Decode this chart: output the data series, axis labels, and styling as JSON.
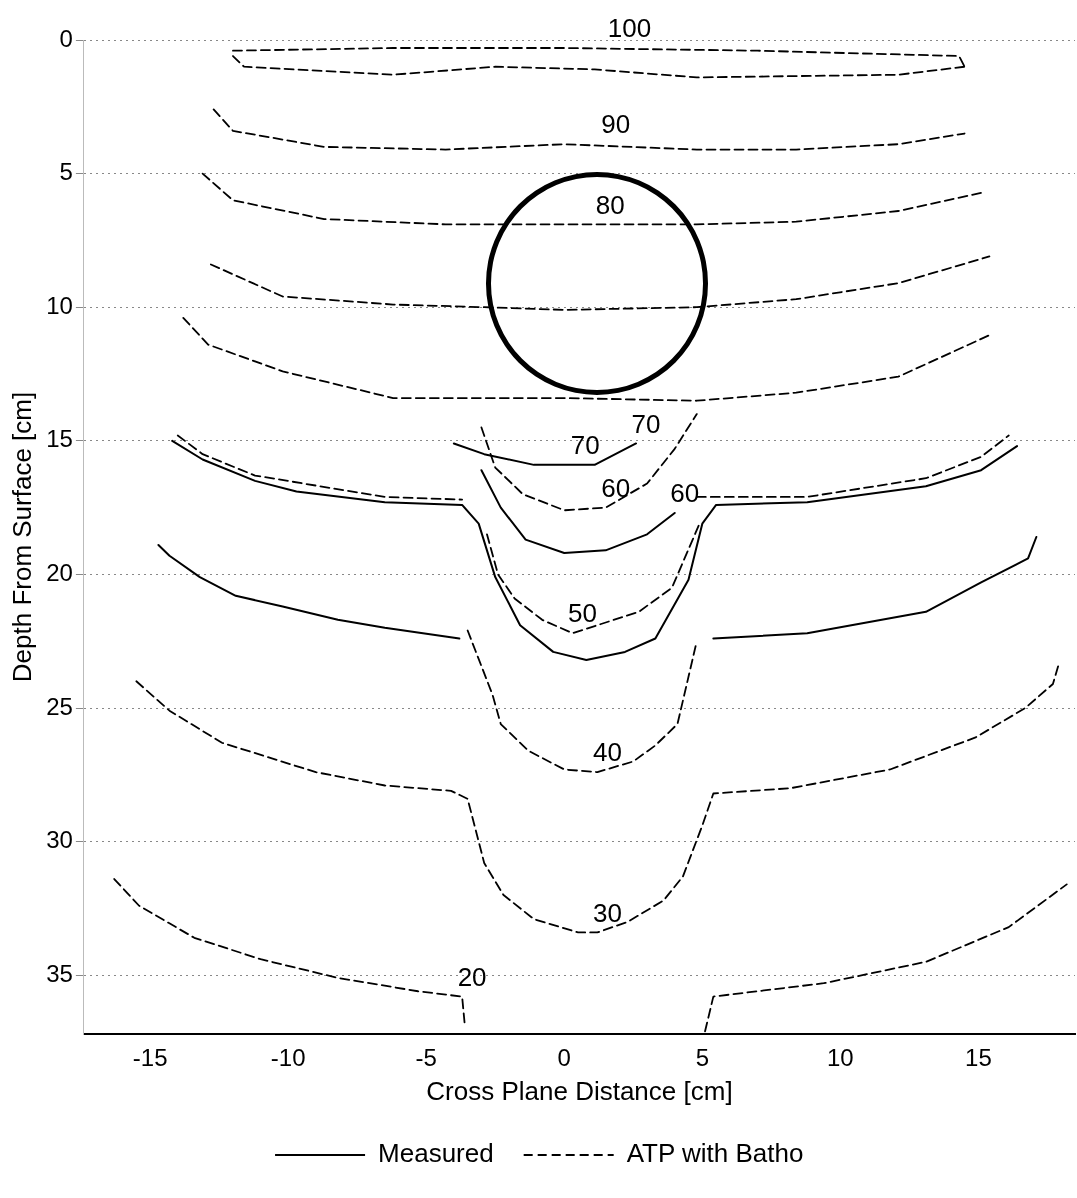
{
  "chart_data": {
    "type": "line",
    "xlabel": "Cross Plane Distance [cm]",
    "ylabel": "Depth From Surface [cm]",
    "xlim": [
      -17.4,
      18.5
    ],
    "xticks": [
      -15,
      -10,
      -5,
      0,
      5,
      10,
      15
    ],
    "ylim": [
      37.2,
      0
    ],
    "yticks": [
      0,
      5,
      10,
      15,
      20,
      25,
      30,
      35
    ],
    "grid": "y",
    "legend": "bottom",
    "marker": "none",
    "series": [
      {
        "name": "Measured",
        "color": "#000000",
        "line_style": "solid",
        "x": [
          -14.2,
          -13.1,
          -11.2,
          -9.7,
          -6.5,
          -3.7,
          -3.1,
          -2.5,
          -1.6,
          -0.4,
          0.8,
          2.2,
          3.3,
          4.5,
          5.0,
          5.5,
          8.8,
          13.1,
          15.1,
          16.4
        ],
        "values": [
          15.0,
          15.7,
          16.5,
          16.9,
          17.3,
          17.4,
          18.1,
          20.1,
          21.9,
          22.9,
          23.2,
          22.9,
          22.4,
          20.2,
          18.1,
          17.4,
          17.3,
          16.7,
          16.1,
          15.2
        ]
      },
      {
        "name": "ATP with Batho",
        "color": "#000000",
        "line_style": "dashed",
        "x": [
          -12.0,
          -6.2,
          0,
          7.0,
          14.3,
          14.5
        ],
        "values": [
          0.4,
          0.3,
          0.3,
          0.4,
          0.6,
          1.0
        ]
      },
      {
        "color": "#000000",
        "line_style": "dashed",
        "x": [
          -12.0,
          -11.6,
          -6.2,
          -2.5,
          1.1,
          4.8,
          12.1,
          14.5
        ],
        "values": [
          0.6,
          1.0,
          1.3,
          1.0,
          1.1,
          1.4,
          1.3,
          1.0
        ]
      },
      {
        "color": "#000000",
        "line_style": "solid",
        "x": [
          -3.0,
          -2.3,
          -1.4,
          0,
          1.5,
          3.0,
          4.0
        ],
        "values": [
          16.1,
          17.5,
          18.7,
          19.2,
          19.1,
          18.5,
          17.7
        ]
      },
      {
        "color": "#000000",
        "line_style": "solid",
        "x": [
          -4.0,
          -2.9,
          -1.1,
          1.1,
          2.6
        ],
        "values": [
          15.1,
          15.5,
          15.9,
          15.9,
          15.1
        ]
      },
      {
        "color": "#000000",
        "line_style": "solid",
        "x": [
          -14.7,
          -14.3,
          -13.2,
          -11.9,
          -10.2,
          -8.2,
          -6.5,
          -3.8
        ],
        "values": [
          18.9,
          19.3,
          20.1,
          20.8,
          21.2,
          21.7,
          22.0,
          22.4
        ]
      },
      {
        "color": "#000000",
        "line_style": "solid",
        "x": [
          5.4,
          8.8,
          13.1,
          15.1,
          16.8,
          17.1
        ],
        "values": [
          22.4,
          22.2,
          21.4,
          20.3,
          19.4,
          18.6
        ]
      },
      {
        "color": "#000000",
        "line_style": "dashed",
        "x": [
          -12.7,
          -12.0,
          -8.7,
          -4.3,
          0,
          4.8,
          8.4,
          12.1,
          14.5
        ],
        "values": [
          2.6,
          3.4,
          4.0,
          4.1,
          3.9,
          4.1,
          4.1,
          3.9,
          3.5
        ]
      },
      {
        "color": "#000000",
        "line_style": "dashed",
        "x": [
          -13.1,
          -12.0,
          -8.7,
          -4.3,
          0,
          4.8,
          8.4,
          12.1,
          15.2
        ],
        "values": [
          5.0,
          6.0,
          6.7,
          6.9,
          6.9,
          6.9,
          6.8,
          6.4,
          5.7
        ]
      },
      {
        "color": "#000000",
        "line_style": "dashed",
        "x": [
          -12.8,
          -10.2,
          -6.2,
          -2.9,
          0,
          4.8,
          8.4,
          12.1,
          15.4
        ],
        "values": [
          8.4,
          9.6,
          9.9,
          10.0,
          10.1,
          10.0,
          9.7,
          9.1,
          8.1
        ]
      },
      {
        "color": "#000000",
        "line_style": "dashed",
        "x": [
          -13.8,
          -12.9,
          -10.2,
          -6.2,
          -3.2,
          0,
          4.8,
          8.4,
          12.1,
          15.5
        ],
        "values": [
          10.4,
          11.4,
          12.4,
          13.4,
          13.4,
          13.4,
          13.5,
          13.2,
          12.6,
          11.0
        ]
      },
      {
        "color": "#000000",
        "line_style": "dashed",
        "x": [
          -14.0,
          -13.1,
          -11.2,
          -6.5,
          -3.7
        ],
        "values": [
          14.8,
          15.5,
          16.3,
          17.1,
          17.2
        ]
      },
      {
        "color": "#000000",
        "line_style": "dashed",
        "x": [
          4.8,
          8.8,
          13.1,
          15.1,
          16.1
        ],
        "values": [
          17.1,
          17.1,
          16.4,
          15.6,
          14.8
        ]
      },
      {
        "color": "#000000",
        "line_style": "dashed",
        "x": [
          -3.0,
          -2.5,
          -1.5,
          0,
          1.5,
          3.0,
          4.0,
          4.8
        ],
        "values": [
          14.5,
          16.0,
          17.0,
          17.6,
          17.5,
          16.6,
          15.3,
          14.0
        ]
      },
      {
        "color": "#000000",
        "line_style": "dashed",
        "x": [
          -2.8,
          -2.4,
          -1.8,
          -0.8,
          0.3,
          2.7,
          3.9,
          4.9
        ],
        "values": [
          18.5,
          20.0,
          20.9,
          21.7,
          22.2,
          21.4,
          20.5,
          18.1
        ]
      },
      {
        "color": "#000000",
        "line_style": "dashed",
        "x": [
          -3.5,
          -2.6,
          -2.3,
          -1.3,
          0,
          1.2,
          2.5,
          3.3,
          4.1,
          4.8
        ],
        "values": [
          22.1,
          24.5,
          25.6,
          26.6,
          27.3,
          27.4,
          27.0,
          26.4,
          25.6,
          22.5
        ]
      },
      {
        "color": "#000000",
        "line_style": "dashed",
        "x": [
          -15.5,
          -14.3,
          -12.4,
          -9.0,
          -6.5,
          -4.1,
          -3.5,
          -2.9,
          -2.2,
          -1.1,
          0.5,
          1.2,
          2.3,
          3.6,
          4.3,
          5.0,
          5.4,
          8.2,
          11.8,
          14.9,
          16.7,
          17.7,
          17.9
        ],
        "values": [
          24.0,
          25.1,
          26.3,
          27.4,
          27.9,
          28.1,
          28.4,
          30.8,
          32.0,
          32.9,
          33.4,
          33.4,
          33.0,
          32.2,
          31.3,
          29.4,
          28.2,
          28.0,
          27.3,
          26.1,
          25.0,
          24.1,
          23.4
        ]
      },
      {
        "color": "#000000",
        "line_style": "dashed",
        "x": [
          -16.3,
          -15.4,
          -13.4,
          -11.0,
          -8.2,
          -5.3,
          -3.7,
          -3.6
        ],
        "values": [
          31.4,
          32.4,
          33.6,
          34.4,
          35.1,
          35.6,
          35.8,
          36.9
        ]
      },
      {
        "color": "#000000",
        "line_style": "dashed",
        "x": [
          5.1,
          5.4,
          9.4,
          13.1,
          16.1,
          18.2
        ],
        "values": [
          37.1,
          35.8,
          35.3,
          34.5,
          33.2,
          31.6
        ]
      }
    ],
    "annotations": [
      {
        "text": "100",
        "x": 2.0,
        "y": 0.3
      },
      {
        "text": "90",
        "x": 1.5,
        "y": 3.9
      },
      {
        "text": "80",
        "x": 1.3,
        "y": 6.9
      },
      {
        "text": "70",
        "x": 0.4,
        "y": 15.9
      },
      {
        "text": "70",
        "x": 2.6,
        "y": 15.1
      },
      {
        "text": "60",
        "x": 1.5,
        "y": 17.5
      },
      {
        "text": "60",
        "x": 4.0,
        "y": 17.7
      },
      {
        "text": "50",
        "x": 0.3,
        "y": 22.2
      },
      {
        "text": "40",
        "x": 1.2,
        "y": 27.4
      },
      {
        "text": "30",
        "x": 1.2,
        "y": 33.4
      },
      {
        "text": "20",
        "x": -3.7,
        "y": 35.8
      }
    ]
  }
}
